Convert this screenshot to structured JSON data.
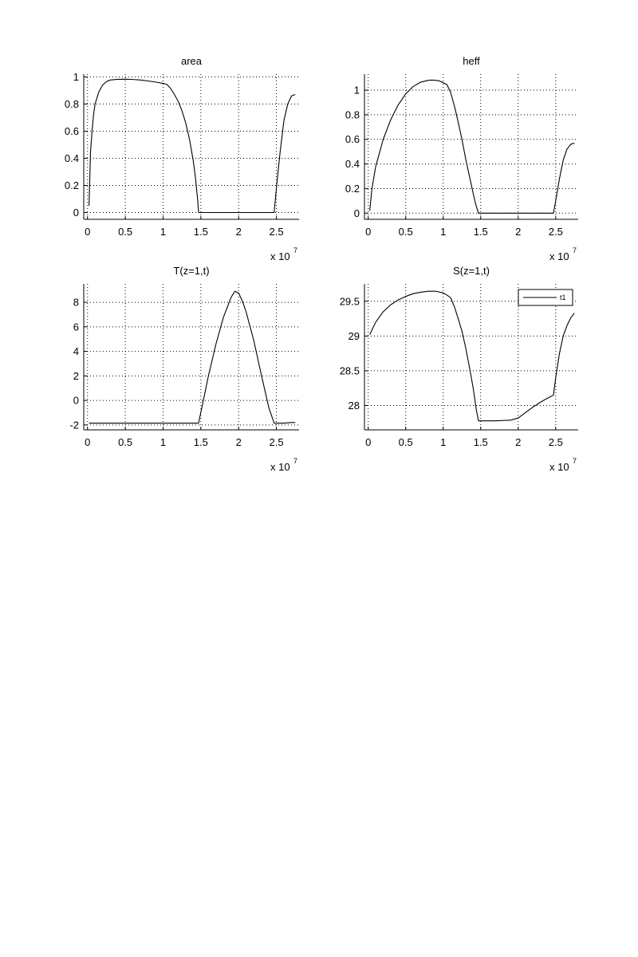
{
  "figure": {
    "background": "#ffffff",
    "line_color": "#000000",
    "grid": true
  },
  "chart_data": [
    {
      "type": "line",
      "title": "area",
      "xlabel": "",
      "ylabel": "",
      "x_exponent_label": {
        "base": "x 10",
        "power": "7"
      },
      "xlim": [
        -0.05,
        2.8
      ],
      "ylim": [
        -0.05,
        1.02
      ],
      "xticks": [
        0,
        0.5,
        1,
        1.5,
        2,
        2.5
      ],
      "xticklabels": [
        "0",
        "0.5",
        "1",
        "1.5",
        "2",
        "2.5"
      ],
      "yticks": [
        0,
        0.2,
        0.4,
        0.6,
        0.8,
        1
      ],
      "yticklabels": [
        "0",
        "0.2",
        "0.4",
        "0.6",
        "0.8",
        "1"
      ],
      "series": [
        {
          "x": [
            0.02,
            0.04,
            0.06,
            0.08,
            0.1,
            0.15,
            0.2,
            0.25,
            0.3,
            0.4,
            0.5,
            0.6,
            0.7,
            0.8,
            0.9,
            1.0,
            1.05,
            1.1,
            1.15,
            1.2,
            1.25,
            1.3,
            1.35,
            1.4,
            1.43,
            1.46,
            1.47,
            1.5,
            1.7,
            2.0,
            2.2,
            2.4,
            2.45,
            2.47,
            2.5,
            2.55,
            2.6,
            2.65,
            2.7,
            2.75
          ],
          "y": [
            0.05,
            0.45,
            0.6,
            0.72,
            0.8,
            0.89,
            0.94,
            0.965,
            0.977,
            0.982,
            0.983,
            0.981,
            0.977,
            0.97,
            0.962,
            0.952,
            0.945,
            0.915,
            0.87,
            0.82,
            0.75,
            0.66,
            0.54,
            0.38,
            0.25,
            0.08,
            0.0,
            0.0,
            0.0,
            0.0,
            0.0,
            0.0,
            0.0,
            0.0,
            0.18,
            0.45,
            0.68,
            0.8,
            0.86,
            0.87
          ]
        }
      ]
    },
    {
      "type": "line",
      "title": "heff",
      "xlabel": "",
      "ylabel": "",
      "x_exponent_label": {
        "base": "x 10",
        "power": "7"
      },
      "xlim": [
        -0.05,
        2.8
      ],
      "ylim": [
        -0.05,
        1.13
      ],
      "xticks": [
        0,
        0.5,
        1,
        1.5,
        2,
        2.5
      ],
      "xticklabels": [
        "0",
        "0.5",
        "1",
        "1.5",
        "2",
        "2.5"
      ],
      "yticks": [
        0,
        0.2,
        0.4,
        0.6,
        0.8,
        1
      ],
      "yticklabels": [
        "0",
        "0.2",
        "0.4",
        "0.6",
        "0.8",
        "1"
      ],
      "series": [
        {
          "x": [
            0.02,
            0.05,
            0.1,
            0.2,
            0.3,
            0.4,
            0.5,
            0.6,
            0.7,
            0.8,
            0.85,
            0.9,
            0.95,
            1.0,
            1.05,
            1.1,
            1.15,
            1.2,
            1.25,
            1.3,
            1.35,
            1.4,
            1.43,
            1.46,
            1.47,
            1.5,
            2.0,
            2.45,
            2.47,
            2.5,
            2.55,
            2.6,
            2.65,
            2.7,
            2.75
          ],
          "y": [
            0.02,
            0.2,
            0.38,
            0.6,
            0.76,
            0.88,
            0.97,
            1.03,
            1.065,
            1.08,
            1.082,
            1.08,
            1.075,
            1.06,
            1.045,
            0.98,
            0.87,
            0.74,
            0.6,
            0.44,
            0.3,
            0.16,
            0.08,
            0.02,
            0.0,
            0.0,
            0.0,
            0.0,
            0.0,
            0.1,
            0.28,
            0.43,
            0.52,
            0.56,
            0.57
          ]
        }
      ]
    },
    {
      "type": "line",
      "title": "T(z=1,t)",
      "xlabel": "",
      "ylabel": "",
      "x_exponent_label": {
        "base": "x 10",
        "power": "7"
      },
      "xlim": [
        -0.05,
        2.8
      ],
      "ylim": [
        -2.4,
        9.5
      ],
      "xticks": [
        0,
        0.5,
        1,
        1.5,
        2,
        2.5
      ],
      "xticklabels": [
        "0",
        "0.5",
        "1",
        "1.5",
        "2",
        "2.5"
      ],
      "yticks": [
        -2,
        0,
        2,
        4,
        6,
        8
      ],
      "yticklabels": [
        "-2",
        "0",
        "2",
        "4",
        "6",
        "8"
      ],
      "series": [
        {
          "x": [
            0.02,
            0.5,
            1.0,
            1.4,
            1.47,
            1.55,
            1.6,
            1.7,
            1.8,
            1.9,
            1.95,
            2.0,
            2.05,
            2.1,
            2.2,
            2.3,
            2.4,
            2.47,
            2.5,
            2.6,
            2.7,
            2.75
          ],
          "y": [
            -1.85,
            -1.85,
            -1.85,
            -1.85,
            -1.85,
            0.5,
            2.0,
            4.6,
            6.8,
            8.4,
            8.9,
            8.75,
            8.1,
            7.2,
            4.9,
            2.1,
            -0.6,
            -1.85,
            -1.85,
            -1.85,
            -1.8,
            -1.8
          ]
        }
      ]
    },
    {
      "type": "line",
      "title": "S(z=1,t)",
      "xlabel": "",
      "ylabel": "",
      "x_exponent_label": {
        "base": "x 10",
        "power": "7"
      },
      "xlim": [
        -0.05,
        2.8
      ],
      "ylim": [
        27.65,
        29.75
      ],
      "xticks": [
        0,
        0.5,
        1,
        1.5,
        2,
        2.5
      ],
      "xticklabels": [
        "0",
        "0.5",
        "1",
        "1.5",
        "2",
        "2.5"
      ],
      "yticks": [
        28,
        28.5,
        29,
        29.5
      ],
      "yticklabels": [
        "28",
        "28.5",
        "29",
        "29.5"
      ],
      "legend": {
        "entries": [
          "t1"
        ],
        "placement": "top-right"
      },
      "series": [
        {
          "name": "t1",
          "x": [
            0.02,
            0.1,
            0.2,
            0.3,
            0.4,
            0.5,
            0.6,
            0.7,
            0.8,
            0.9,
            1.0,
            1.05,
            1.1,
            1.15,
            1.2,
            1.25,
            1.3,
            1.35,
            1.4,
            1.44,
            1.47,
            1.5,
            1.7,
            1.9,
            2.0,
            2.1,
            2.2,
            2.3,
            2.4,
            2.47,
            2.5,
            2.55,
            2.6,
            2.65,
            2.7,
            2.75
          ],
          "y": [
            29.02,
            29.2,
            29.35,
            29.45,
            29.52,
            29.57,
            29.61,
            29.63,
            29.645,
            29.645,
            29.62,
            29.59,
            29.55,
            29.42,
            29.25,
            29.07,
            28.83,
            28.55,
            28.25,
            27.95,
            27.78,
            27.78,
            27.78,
            27.79,
            27.82,
            27.9,
            27.98,
            28.05,
            28.11,
            28.15,
            28.4,
            28.75,
            29.0,
            29.15,
            29.26,
            29.33
          ]
        }
      ]
    }
  ]
}
